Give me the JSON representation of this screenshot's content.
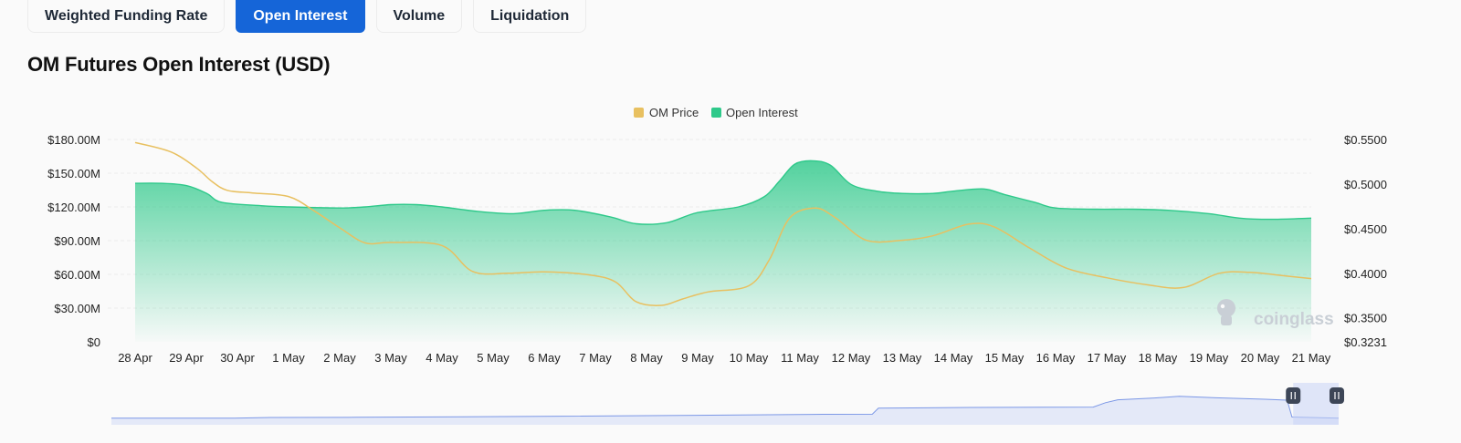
{
  "tabs": [
    {
      "label": "Weighted Funding Rate",
      "active": false
    },
    {
      "label": "Open Interest",
      "active": true
    },
    {
      "label": "Volume",
      "active": false
    },
    {
      "label": "Liquidation",
      "active": false
    }
  ],
  "title": "OM Futures Open Interest (USD)",
  "watermark": "coinglass",
  "colors": {
    "price": "#e8c060",
    "open_interest": "#2ec98a",
    "navigator": "#7b97e6",
    "accent": "#1565d8"
  },
  "chart_data": {
    "type": "area",
    "categories": [
      "28 Apr",
      "29 Apr",
      "30 Apr",
      "1 May",
      "2 May",
      "3 May",
      "4 May",
      "5 May",
      "6 May",
      "7 May",
      "8 May",
      "9 May",
      "10 May",
      "11 May",
      "12 May",
      "13 May",
      "14 May",
      "15 May",
      "16 May",
      "17 May",
      "18 May",
      "19 May",
      "20 May",
      "21 May"
    ],
    "legend": [
      "OM Price",
      "Open Interest"
    ],
    "legend_position": "top-center",
    "y_left": {
      "ticks": [
        "$0",
        "$30.00M",
        "$60.00M",
        "$90.00M",
        "$120.00M",
        "$150.00M",
        "$180.00M"
      ],
      "range": [
        0,
        180
      ]
    },
    "y_right": {
      "ticks": [
        "$0.3231",
        "$0.3500",
        "$0.4000",
        "$0.4500",
        "$0.5000",
        "$0.5500"
      ],
      "range": [
        0.3231,
        0.55
      ]
    },
    "grid": true,
    "series": [
      {
        "name": "Open Interest",
        "axis": "left",
        "points": [
          [
            0,
            141
          ],
          [
            0.5,
            141
          ],
          [
            1,
            139
          ],
          [
            1.4,
            132
          ],
          [
            1.7,
            124
          ],
          [
            2.5,
            121
          ],
          [
            3,
            120
          ],
          [
            4,
            119
          ],
          [
            4.5,
            120
          ],
          [
            5,
            122
          ],
          [
            5.5,
            122
          ],
          [
            6,
            120
          ],
          [
            6.7,
            116
          ],
          [
            7.4,
            114
          ],
          [
            8,
            117
          ],
          [
            8.6,
            117
          ],
          [
            9.3,
            111
          ],
          [
            9.8,
            105
          ],
          [
            10.4,
            106
          ],
          [
            11,
            115
          ],
          [
            11.8,
            120
          ],
          [
            12.3,
            129
          ],
          [
            12.6,
            143
          ],
          [
            12.9,
            158
          ],
          [
            13.25,
            161
          ],
          [
            13.6,
            157
          ],
          [
            14,
            140
          ],
          [
            14.5,
            134
          ],
          [
            15,
            132
          ],
          [
            15.6,
            132
          ],
          [
            16,
            134
          ],
          [
            16.6,
            136
          ],
          [
            17,
            131
          ],
          [
            17.6,
            124
          ],
          [
            18,
            119
          ],
          [
            18.8,
            118
          ],
          [
            19.5,
            118
          ],
          [
            20.2,
            117
          ],
          [
            21,
            114
          ],
          [
            21.6,
            110
          ],
          [
            22.2,
            109
          ],
          [
            23,
            110
          ]
        ]
      },
      {
        "name": "OM Price",
        "axis": "right",
        "points": [
          [
            0,
            0.5465
          ],
          [
            0.7,
            0.536
          ],
          [
            1.2,
            0.518
          ],
          [
            1.5,
            0.503
          ],
          [
            1.8,
            0.493
          ],
          [
            2.3,
            0.49
          ],
          [
            3,
            0.486
          ],
          [
            3.5,
            0.47
          ],
          [
            4,
            0.451
          ],
          [
            4.5,
            0.434
          ],
          [
            5,
            0.4345
          ],
          [
            6,
            0.431
          ],
          [
            6.6,
            0.402
          ],
          [
            7.3,
            0.4
          ],
          [
            8,
            0.4015
          ],
          [
            8.9,
            0.398
          ],
          [
            9.4,
            0.39
          ],
          [
            9.8,
            0.368
          ],
          [
            10.3,
            0.364
          ],
          [
            10.7,
            0.371
          ],
          [
            11.2,
            0.379
          ],
          [
            12,
            0.386
          ],
          [
            12.4,
            0.415
          ],
          [
            12.8,
            0.462
          ],
          [
            13.3,
            0.473
          ],
          [
            13.7,
            0.462
          ],
          [
            14.3,
            0.437
          ],
          [
            15,
            0.437
          ],
          [
            15.6,
            0.442
          ],
          [
            16.3,
            0.455
          ],
          [
            16.8,
            0.452
          ],
          [
            17.5,
            0.428
          ],
          [
            18.2,
            0.406
          ],
          [
            19,
            0.395
          ],
          [
            19.8,
            0.387
          ],
          [
            20.5,
            0.384
          ],
          [
            21.2,
            0.4
          ],
          [
            21.8,
            0.401
          ],
          [
            22.5,
            0.397
          ],
          [
            23,
            0.394
          ]
        ]
      }
    ],
    "navigator": {
      "series": "Open Interest",
      "points": [
        [
          0,
          12
        ],
        [
          0.1,
          12
        ],
        [
          0.13,
          13.4
        ],
        [
          0.2,
          13.6
        ],
        [
          0.35,
          15.4
        ],
        [
          0.5,
          17.6
        ],
        [
          0.58,
          19.2
        ],
        [
          0.62,
          19.4
        ],
        [
          0.625,
          30.4
        ],
        [
          0.7,
          31.6
        ],
        [
          0.8,
          32.4
        ],
        [
          0.81,
          40.4
        ],
        [
          0.82,
          45.6
        ],
        [
          0.85,
          49
        ],
        [
          0.87,
          52
        ],
        [
          0.9,
          49.4
        ],
        [
          0.94,
          46.6
        ],
        [
          0.958,
          45
        ],
        [
          0.962,
          14.2
        ],
        [
          1,
          12
        ]
      ],
      "selection": [
        0.96,
        1
      ]
    }
  }
}
